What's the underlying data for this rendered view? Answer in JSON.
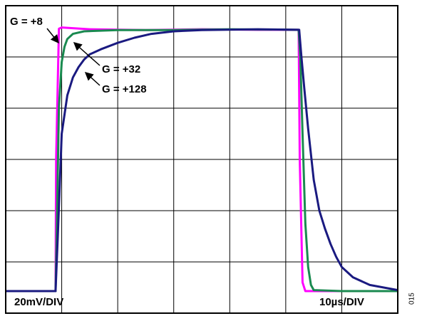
{
  "chart_data": {
    "type": "line",
    "xlim": [
      0,
      70
    ],
    "ylim": [
      0,
      120
    ],
    "xticks": [
      0,
      10,
      20,
      30,
      40,
      50,
      60,
      70
    ],
    "yticks": [
      0,
      20,
      40,
      60,
      80,
      100,
      120
    ],
    "grid": true,
    "y_scale_label": "20mV/DIV",
    "x_scale_label": "10µs/DIV",
    "figure_number": "015",
    "series": [
      {
        "name": "G = +8",
        "color": "#ff00ff",
        "x": [
          0,
          8.9,
          9.0,
          9.5,
          10,
          15,
          25,
          35,
          45,
          52.3,
          52.5,
          53,
          53.5,
          60,
          70
        ],
        "values": [
          8.6,
          8.6,
          60,
          111,
          111.5,
          110.8,
          110.5,
          110.8,
          110.6,
          110.6,
          60,
          12,
          8.6,
          8.6,
          8.6
        ]
      },
      {
        "name": "G = +32",
        "color": "#1a8a50",
        "x": [
          0,
          8.9,
          9.1,
          9.5,
          10,
          10.5,
          11,
          12,
          14,
          20,
          30,
          40,
          52.3,
          52.6,
          53,
          53.5,
          54,
          54.5,
          55,
          60,
          70
        ],
        "values": [
          8.6,
          8.6,
          30,
          80,
          98,
          104,
          107,
          109,
          110,
          110.5,
          110.5,
          110.8,
          110.6,
          100,
          70,
          35,
          18,
          11,
          9,
          8.6,
          8.6
        ]
      },
      {
        "name": "G = +128",
        "color": "#1a1a80",
        "x": [
          0,
          8.9,
          9.3,
          10,
          11,
          12,
          13,
          14,
          15,
          17,
          20,
          23,
          26,
          30,
          35,
          45,
          52.4,
          52.8,
          53.3,
          54,
          55,
          56,
          57,
          58,
          59,
          60,
          62,
          65,
          70
        ],
        "values": [
          8.6,
          8.6,
          30,
          70,
          85,
          92,
          96,
          99,
          101,
          103,
          105.5,
          107.5,
          109,
          110,
          110.5,
          110.8,
          110.6,
          100,
          88,
          72,
          52,
          40,
          33,
          27,
          22,
          18,
          14,
          11,
          9
        ]
      }
    ]
  }
}
